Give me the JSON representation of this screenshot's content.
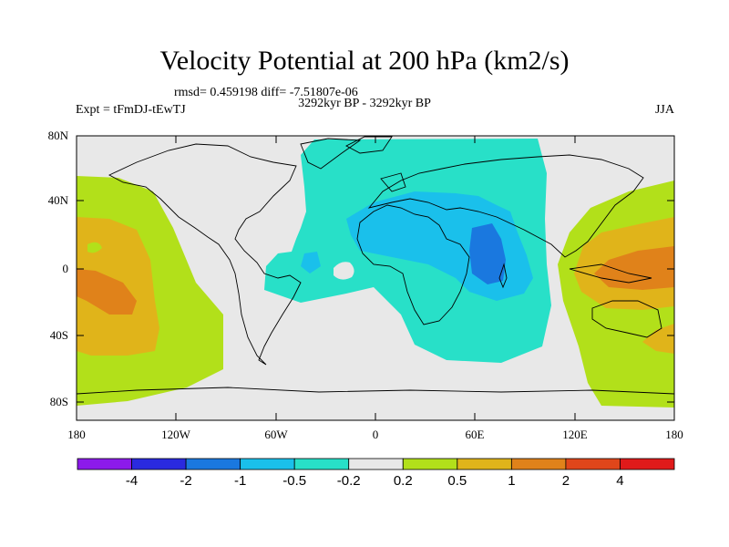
{
  "header": {
    "title": "Velocity Potential at 200 hPa (km2/s)",
    "stats": "rmsd= 0.459198 diff= -7.51807e-06",
    "period": "3292kyr BP - 3292kyr BP",
    "experiment": "Expt = tFmDJ-tEwTJ",
    "season": "JJA"
  },
  "axes": {
    "lat_labels": [
      "80N",
      "40N",
      "0",
      "40S",
      "80S"
    ],
    "lon_labels": [
      "180",
      "120W",
      "60W",
      "0",
      "60E",
      "120E",
      "180"
    ]
  },
  "colorbar": {
    "colors": [
      "#8c1aeb",
      "#2a2adf",
      "#1a78df",
      "#1ac0eb",
      "#28e0c8",
      "#e8e8e8",
      "#b2e01a",
      "#e0b41a",
      "#e0821a",
      "#e0461a",
      "#e01a1a"
    ],
    "labels": [
      "-4",
      "-2",
      "-1",
      "-0.5",
      "-0.2",
      "0.2",
      "0.5",
      "1",
      "2",
      "4"
    ]
  },
  "colors": {
    "land_background": "#e8e8e8",
    "coast": "#000000"
  }
}
